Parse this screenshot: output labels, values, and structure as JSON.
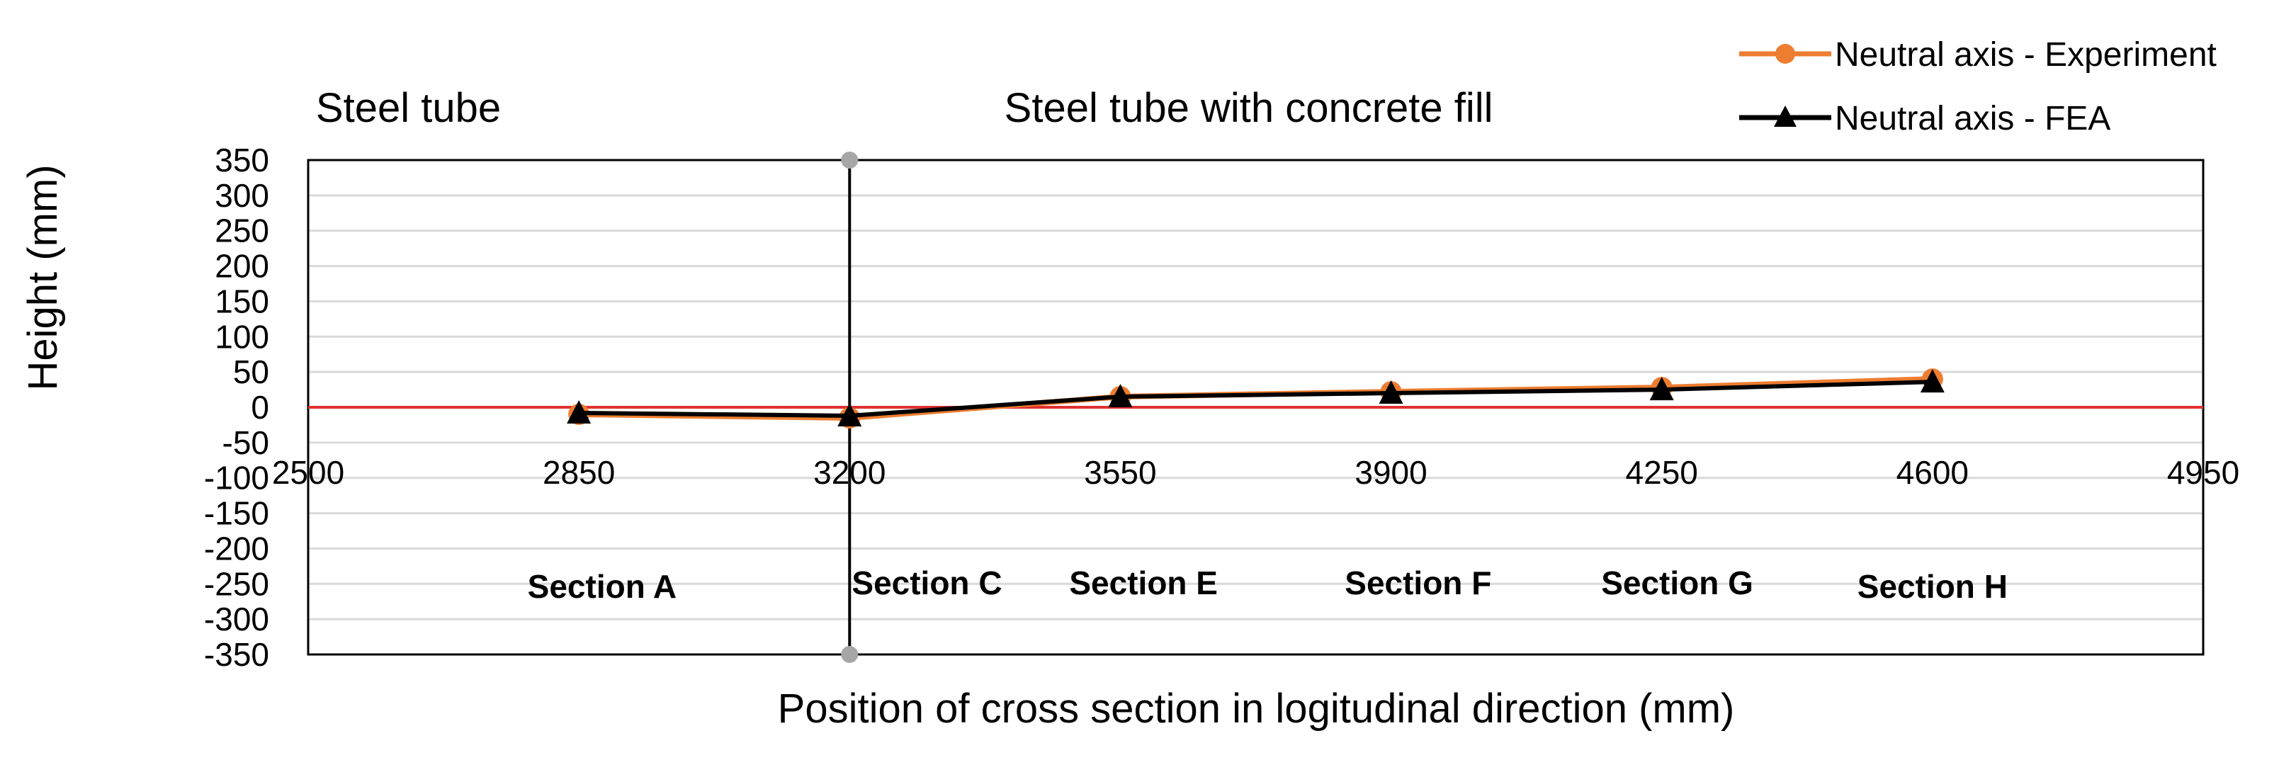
{
  "chart_data": {
    "type": "line",
    "xlabel": "Position of cross section in logitudinal direction (mm)",
    "ylabel": "Height (mm)",
    "xlim": [
      2500,
      4950
    ],
    "ylim": [
      -350,
      350
    ],
    "x_ticks": [
      "2500",
      "2850",
      "3200",
      "3550",
      "3900",
      "4250",
      "4600",
      "4950"
    ],
    "x_tick_values": [
      2500,
      2850,
      3200,
      3550,
      3900,
      4250,
      4600,
      4950
    ],
    "y_ticks": [
      "350",
      "300",
      "250",
      "200",
      "150",
      "100",
      "50",
      "0",
      "-50",
      "-100",
      "-150",
      "-200",
      "-250",
      "-300",
      "-350"
    ],
    "y_tick_values": [
      350,
      300,
      250,
      200,
      150,
      100,
      50,
      0,
      -50,
      -100,
      -150,
      -200,
      -250,
      -300,
      -350
    ],
    "grid": true,
    "legend_position": "top-right",
    "series": [
      {
        "name": "Neutral axis - Experiment",
        "color": "#ED7D31",
        "marker": "circle",
        "x": [
          2850,
          3200,
          3550,
          3900,
          4250,
          4600
        ],
        "values": [
          -10,
          -15,
          15,
          22,
          28,
          40
        ]
      },
      {
        "name": "Neutral axis - FEA",
        "color": "#000000",
        "marker": "triangle",
        "x": [
          2850,
          3200,
          3550,
          3900,
          4250,
          4600
        ],
        "values": [
          -8,
          -12,
          15,
          20,
          25,
          36
        ]
      }
    ],
    "reference_line": {
      "y": 0,
      "color": "#E03030"
    },
    "divider": {
      "x": 3200,
      "color": "#000000",
      "marker_color": "#A6A6A6"
    },
    "region_labels": [
      {
        "text": "Steel tube",
        "x": 2510
      },
      {
        "text": "Steel tube with concrete fill",
        "x": 3400
      }
    ],
    "section_labels": [
      {
        "text": "Section A",
        "x": 2880,
        "y": -270
      },
      {
        "text": "Section C",
        "x": 3300,
        "y": -265
      },
      {
        "text": "Section E",
        "x": 3580,
        "y": -265
      },
      {
        "text": "Section F",
        "x": 3935,
        "y": -265
      },
      {
        "text": "Section G",
        "x": 4270,
        "y": -265
      },
      {
        "text": "Section H",
        "x": 4600,
        "y": -270
      }
    ],
    "colors": {
      "grid": "#D9D9D9",
      "frame": "#000000"
    }
  }
}
